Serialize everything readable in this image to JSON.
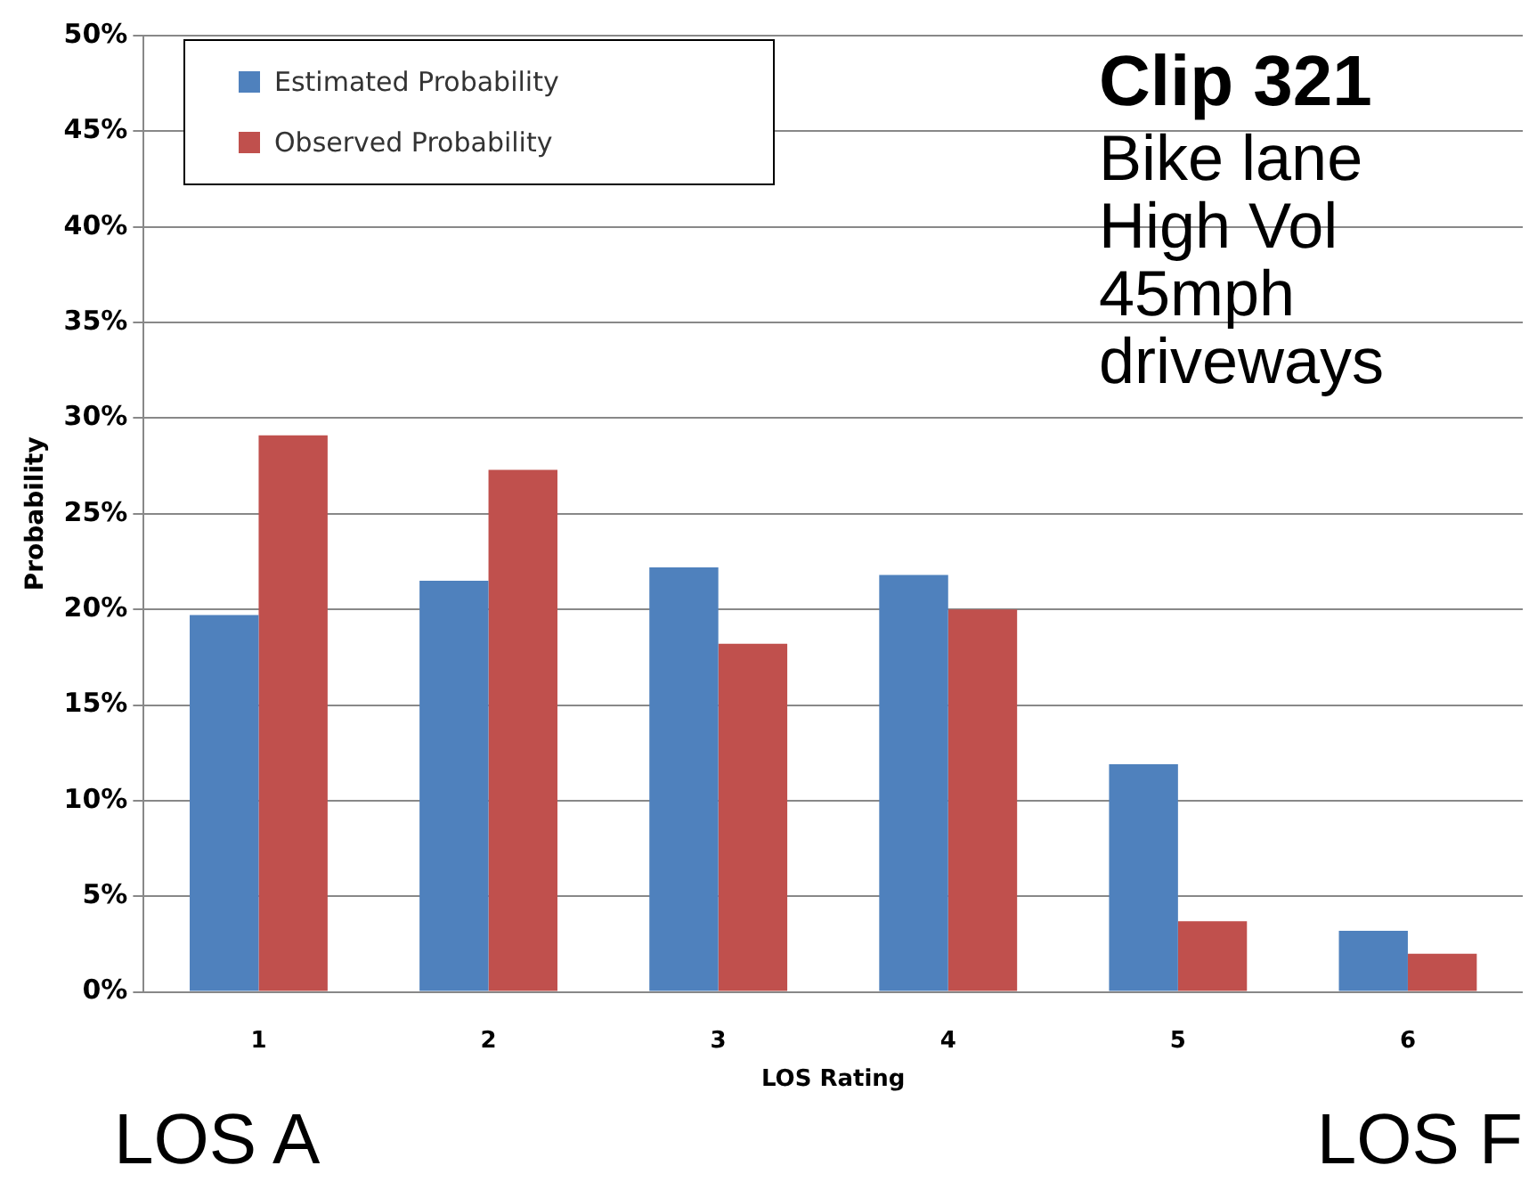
{
  "chart_data": {
    "type": "bar",
    "xlabel": "LOS Rating",
    "ylabel": "Probability",
    "categories": [
      "1",
      "2",
      "3",
      "4",
      "5",
      "6"
    ],
    "series": [
      {
        "name": "Estimated Probability",
        "color": "#4f81bd",
        "values": [
          19.7,
          21.5,
          22.2,
          21.8,
          11.9,
          3.2
        ]
      },
      {
        "name": "Observed Probability",
        "color": "#c0504d",
        "values": [
          29.1,
          27.3,
          18.2,
          20.0,
          3.7,
          2.0
        ]
      }
    ],
    "ylim": [
      0,
      50
    ],
    "yticks": [
      {
        "value": 0,
        "label": "0%"
      },
      {
        "value": 5,
        "label": "5%"
      },
      {
        "value": 10,
        "label": "10%"
      },
      {
        "value": 15,
        "label": "15%"
      },
      {
        "value": 20,
        "label": "20%"
      },
      {
        "value": 25,
        "label": "25%"
      },
      {
        "value": 30,
        "label": "30%"
      },
      {
        "value": 35,
        "label": "35%"
      },
      {
        "value": 40,
        "label": "40%"
      },
      {
        "value": 45,
        "label": "45%"
      },
      {
        "value": 50,
        "label": "50%"
      }
    ],
    "grid": "y",
    "legend": "top left",
    "annotations": [
      "Clip 321",
      "Bike lane",
      "High Vol",
      "45mph",
      "driveways",
      "LOS A",
      "LOS F"
    ]
  }
}
